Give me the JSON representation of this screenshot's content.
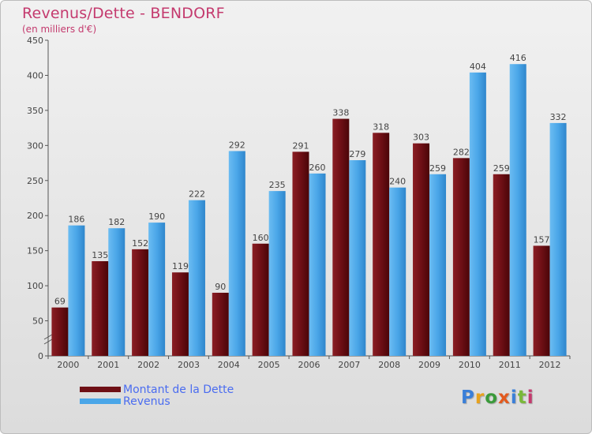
{
  "title": "Revenus/Dette - BENDORF",
  "subtitle": "(en milliers d'€)",
  "logo": {
    "text": "Proxiti",
    "letter_colors": [
      "#3a7fd8",
      "#e8a21c",
      "#3a9a3a",
      "#e35a1e",
      "#3a7fd8",
      "#7ab83a",
      "#c43a6e"
    ]
  },
  "colors": {
    "dette": "#6e0f15",
    "revenus": "#4aa6e8",
    "title": "#c43a6e"
  },
  "chart_data": {
    "type": "bar",
    "title": "Revenus/Dette - BENDORF",
    "ylabel": "(en milliers d'€)",
    "xlabel": "",
    "ylim": [
      0,
      450
    ],
    "yticks": [
      0,
      50,
      100,
      150,
      200,
      250,
      300,
      350,
      400,
      450
    ],
    "grid": false,
    "legend_position": "bottom-left",
    "categories": [
      "2000",
      "2001",
      "2002",
      "2003",
      "2004",
      "2005",
      "2006",
      "2007",
      "2008",
      "2009",
      "2010",
      "2011",
      "2012"
    ],
    "series": [
      {
        "name": "Montant de la Dette",
        "color": "#6e0f15",
        "values": [
          69,
          135,
          152,
          119,
          90,
          160,
          291,
          338,
          318,
          303,
          282,
          259,
          157
        ]
      },
      {
        "name": "Revenus",
        "color": "#4aa6e8",
        "values": [
          186,
          182,
          190,
          222,
          292,
          235,
          260,
          279,
          240,
          259,
          404,
          416,
          332
        ]
      }
    ]
  }
}
